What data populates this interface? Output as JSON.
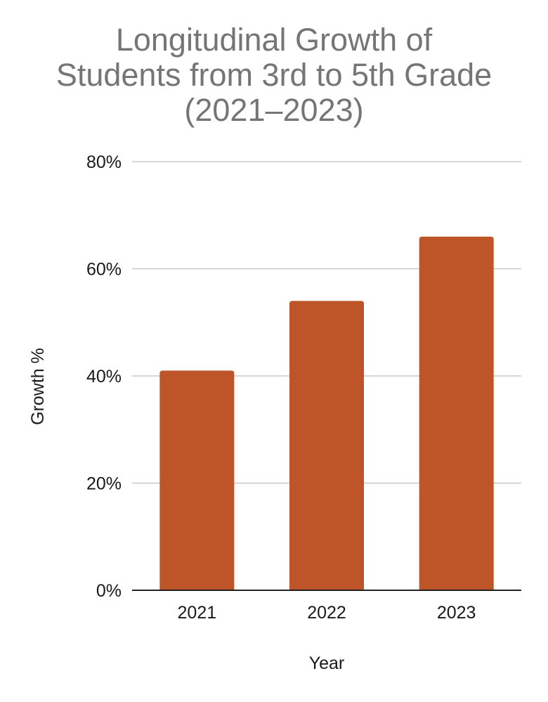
{
  "chart_data": {
    "type": "bar",
    "title_lines": [
      "Longitudinal Growth of",
      "Students from 3rd to 5th Grade",
      "(2021–2023)"
    ],
    "categories": [
      "2021",
      "2022",
      "2023"
    ],
    "values": [
      0.41,
      0.54,
      0.66
    ],
    "xlabel": "Year",
    "ylabel": "Growth %",
    "ylim": [
      0,
      0.8
    ],
    "yticks": [
      0,
      0.2,
      0.4,
      0.6,
      0.8
    ],
    "ytick_labels": [
      "0%",
      "20%",
      "40%",
      "60%",
      "80%"
    ],
    "grid": true,
    "bar_color": "#BE5528",
    "title_color": "#757575"
  }
}
